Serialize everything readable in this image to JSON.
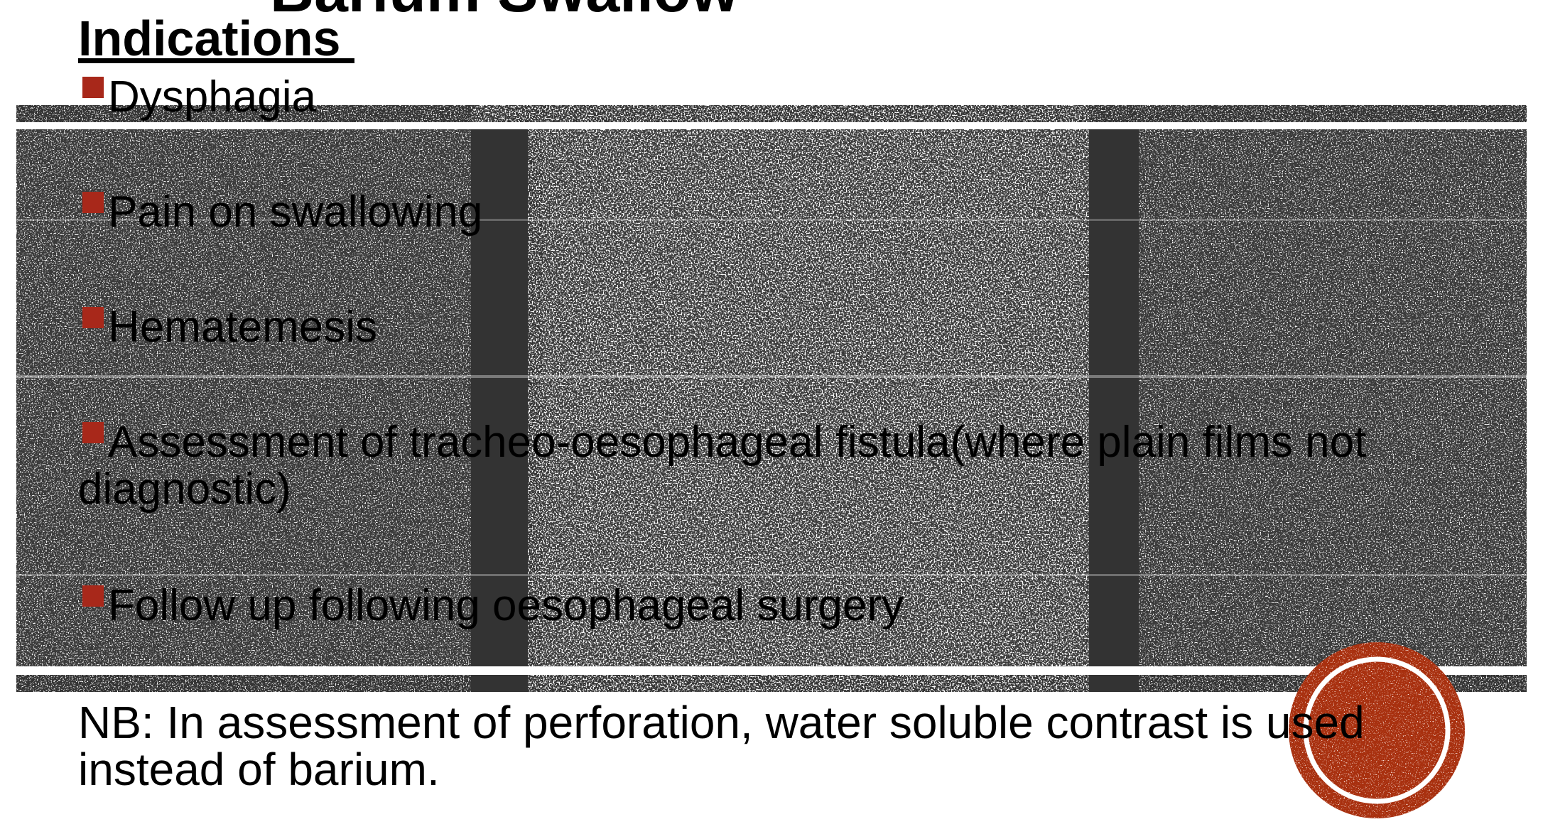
{
  "slide": {
    "title": "Barium Swallow",
    "heading": "Indications ",
    "indications": [
      "Dysphagia",
      "Pain on swallowing",
      "Hematemesis",
      "Assessment of tracheo-oesophageal fistula(where plain films not diagnostic)",
      "Follow up following oesophageal surgery"
    ],
    "note": "NB: In assessment of perforation, water soluble contrast is used instead of barium."
  },
  "colors": {
    "bullet": "#a8281a",
    "band_dark": "#333333",
    "badge": "#a8300f"
  },
  "icons": {
    "bullet_marker": "square-bullet-icon",
    "badge": "circle-badge-icon"
  }
}
